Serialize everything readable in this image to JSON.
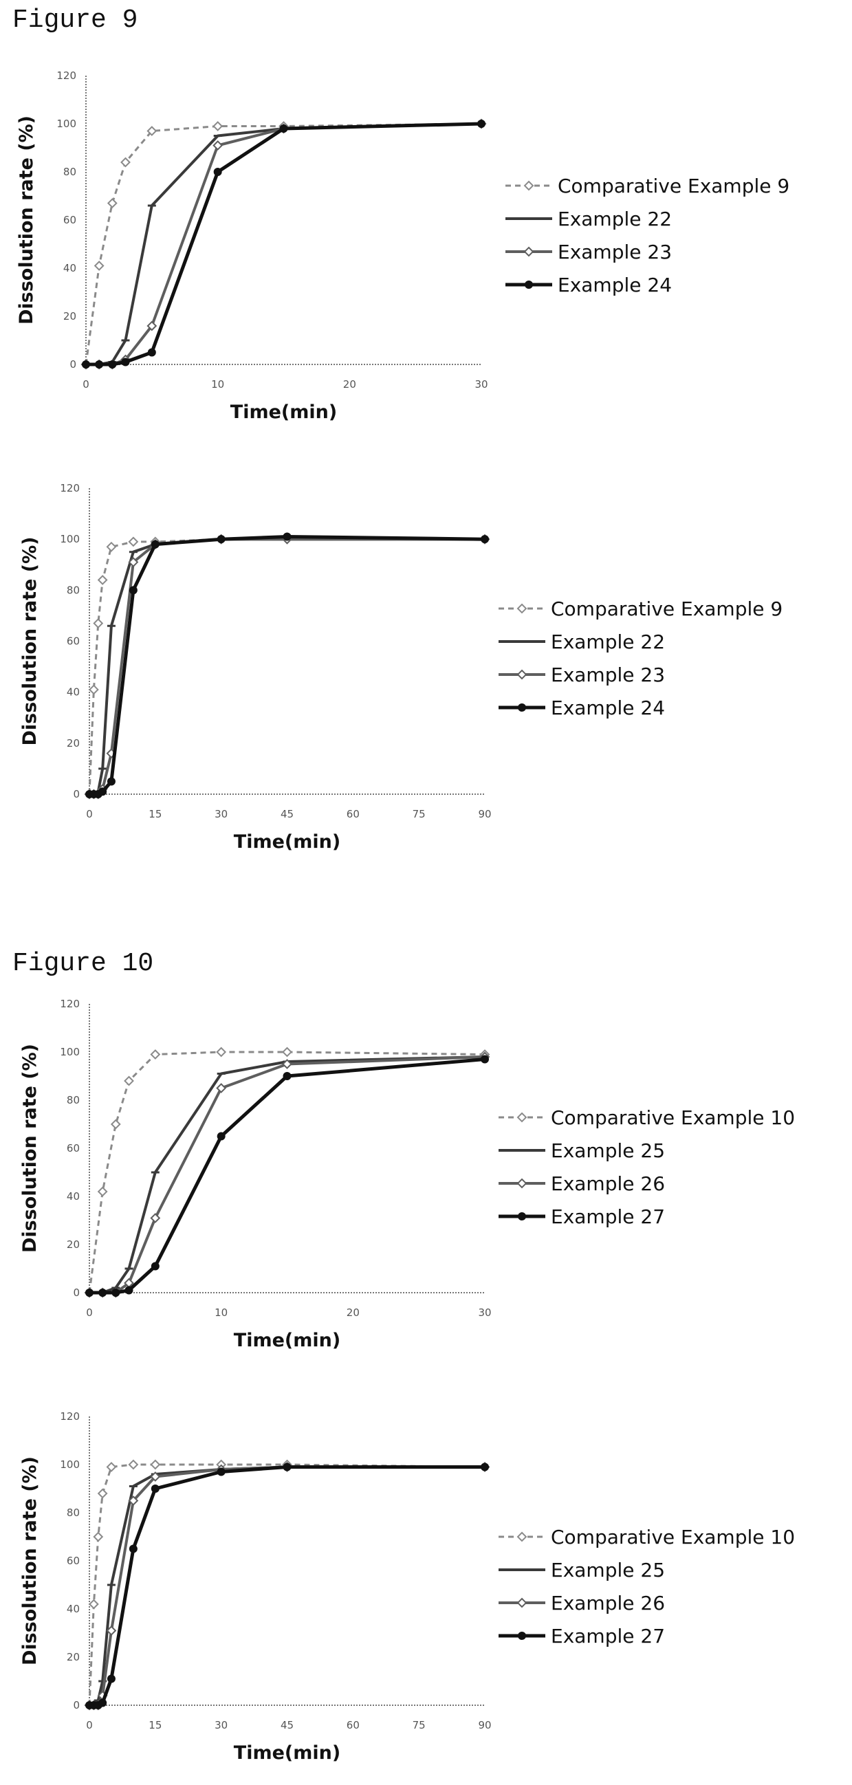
{
  "figures": [
    {
      "label": "Figure 9"
    },
    {
      "label": "Figure 10"
    }
  ],
  "chart_data": [
    {
      "type": "line",
      "figure": "Figure 9",
      "xlabel": "Time(min)",
      "ylabel": "Dissolution rate (%)",
      "xlim": [
        0,
        30
      ],
      "ylim": [
        0,
        120
      ],
      "xticks": [
        0,
        10,
        20,
        30
      ],
      "yticks": [
        0,
        20,
        40,
        60,
        80,
        100,
        120
      ],
      "legend": "right",
      "series": [
        {
          "name": "Comparative Example 9",
          "style": "dashed",
          "marker": "diamond",
          "x": [
            0,
            1,
            2,
            3,
            5,
            10,
            15,
            30
          ],
          "y": [
            0,
            41,
            67,
            84,
            97,
            99,
            99,
            100
          ]
        },
        {
          "name": "Example 22",
          "style": "solid",
          "marker": "dash",
          "x": [
            0,
            1,
            2,
            3,
            5,
            10,
            15,
            30
          ],
          "y": [
            0,
            0,
            1,
            10,
            66,
            95,
            98,
            100
          ]
        },
        {
          "name": "Example 23",
          "style": "solid",
          "marker": "diamond",
          "x": [
            0,
            1,
            2,
            3,
            5,
            10,
            15,
            30
          ],
          "y": [
            0,
            0,
            0,
            2,
            16,
            91,
            98,
            100
          ]
        },
        {
          "name": "Example 24",
          "style": "solid",
          "marker": "filled",
          "x": [
            0,
            1,
            2,
            3,
            5,
            10,
            15,
            30
          ],
          "y": [
            0,
            0,
            0,
            1,
            5,
            80,
            98,
            100
          ]
        }
      ]
    },
    {
      "type": "line",
      "figure": "Figure 9",
      "xlabel": "Time(min)",
      "ylabel": "Dissolution rate (%)",
      "xlim": [
        0,
        90
      ],
      "ylim": [
        0,
        120
      ],
      "xticks": [
        0,
        15,
        30,
        45,
        60,
        75,
        90
      ],
      "yticks": [
        0,
        20,
        40,
        60,
        80,
        100,
        120
      ],
      "legend": "right",
      "series": [
        {
          "name": "Comparative Example 9",
          "style": "dashed",
          "marker": "diamond",
          "x": [
            0,
            1,
            2,
            3,
            5,
            10,
            15,
            30,
            45,
            90
          ],
          "y": [
            0,
            41,
            67,
            84,
            97,
            99,
            99,
            100,
            100,
            100
          ]
        },
        {
          "name": "Example 22",
          "style": "solid",
          "marker": "dash",
          "x": [
            0,
            1,
            2,
            3,
            5,
            10,
            15,
            30,
            45,
            90
          ],
          "y": [
            0,
            0,
            1,
            10,
            66,
            95,
            98,
            100,
            100,
            100
          ]
        },
        {
          "name": "Example 23",
          "style": "solid",
          "marker": "diamond",
          "x": [
            0,
            1,
            2,
            3,
            5,
            10,
            15,
            30,
            45,
            90
          ],
          "y": [
            0,
            0,
            0,
            2,
            16,
            91,
            98,
            100,
            100,
            100
          ]
        },
        {
          "name": "Example 24",
          "style": "solid",
          "marker": "filled",
          "x": [
            0,
            1,
            2,
            3,
            5,
            10,
            15,
            30,
            45,
            90
          ],
          "y": [
            0,
            0,
            0,
            1,
            5,
            80,
            98,
            100,
            101,
            100
          ]
        }
      ]
    },
    {
      "type": "line",
      "figure": "Figure 10",
      "xlabel": "Time(min)",
      "ylabel": "Dissolution rate (%)",
      "xlim": [
        0,
        30
      ],
      "ylim": [
        0,
        120
      ],
      "xticks": [
        0,
        10,
        20,
        30
      ],
      "yticks": [
        0,
        20,
        40,
        60,
        80,
        100,
        120
      ],
      "legend": "right",
      "series": [
        {
          "name": "Comparative Example 10",
          "style": "dashed",
          "marker": "diamond",
          "x": [
            0,
            1,
            2,
            3,
            5,
            10,
            15,
            30
          ],
          "y": [
            0,
            42,
            70,
            88,
            99,
            100,
            100,
            99
          ]
        },
        {
          "name": "Example 25",
          "style": "solid",
          "marker": "dash",
          "x": [
            0,
            1,
            2,
            3,
            5,
            10,
            15,
            30
          ],
          "y": [
            0,
            0,
            2,
            10,
            50,
            91,
            96,
            98
          ]
        },
        {
          "name": "Example 26",
          "style": "solid",
          "marker": "diamond",
          "x": [
            0,
            1,
            2,
            3,
            5,
            10,
            15,
            30
          ],
          "y": [
            0,
            0,
            0,
            4,
            31,
            85,
            95,
            98
          ]
        },
        {
          "name": "Example 27",
          "style": "solid",
          "marker": "filled",
          "x": [
            0,
            1,
            2,
            3,
            5,
            10,
            15,
            30
          ],
          "y": [
            0,
            0,
            0,
            1,
            11,
            65,
            90,
            97
          ]
        }
      ]
    },
    {
      "type": "line",
      "figure": "Figure 10",
      "xlabel": "Time(min)",
      "ylabel": "Dissolution rate (%)",
      "xlim": [
        0,
        90
      ],
      "ylim": [
        0,
        120
      ],
      "xticks": [
        0,
        15,
        30,
        45,
        60,
        75,
        90
      ],
      "yticks": [
        0,
        20,
        40,
        60,
        80,
        100,
        120
      ],
      "legend": "right",
      "series": [
        {
          "name": "Comparative Example 10",
          "style": "dashed",
          "marker": "diamond",
          "x": [
            0,
            1,
            2,
            3,
            5,
            10,
            15,
            30,
            45,
            90
          ],
          "y": [
            0,
            42,
            70,
            88,
            99,
            100,
            100,
            100,
            100,
            99
          ]
        },
        {
          "name": "Example 25",
          "style": "solid",
          "marker": "dash",
          "x": [
            0,
            1,
            2,
            3,
            5,
            10,
            15,
            30,
            45,
            90
          ],
          "y": [
            0,
            0,
            2,
            10,
            50,
            91,
            96,
            98,
            99,
            99
          ]
        },
        {
          "name": "Example 26",
          "style": "solid",
          "marker": "diamond",
          "x": [
            0,
            1,
            2,
            3,
            5,
            10,
            15,
            30,
            45,
            90
          ],
          "y": [
            0,
            0,
            0,
            4,
            31,
            85,
            95,
            98,
            99,
            99
          ]
        },
        {
          "name": "Example 27",
          "style": "solid",
          "marker": "filled",
          "x": [
            0,
            1,
            2,
            3,
            5,
            10,
            15,
            30,
            45,
            90
          ],
          "y": [
            0,
            0,
            0,
            1,
            11,
            65,
            90,
            97,
            99,
            99
          ]
        }
      ]
    }
  ]
}
